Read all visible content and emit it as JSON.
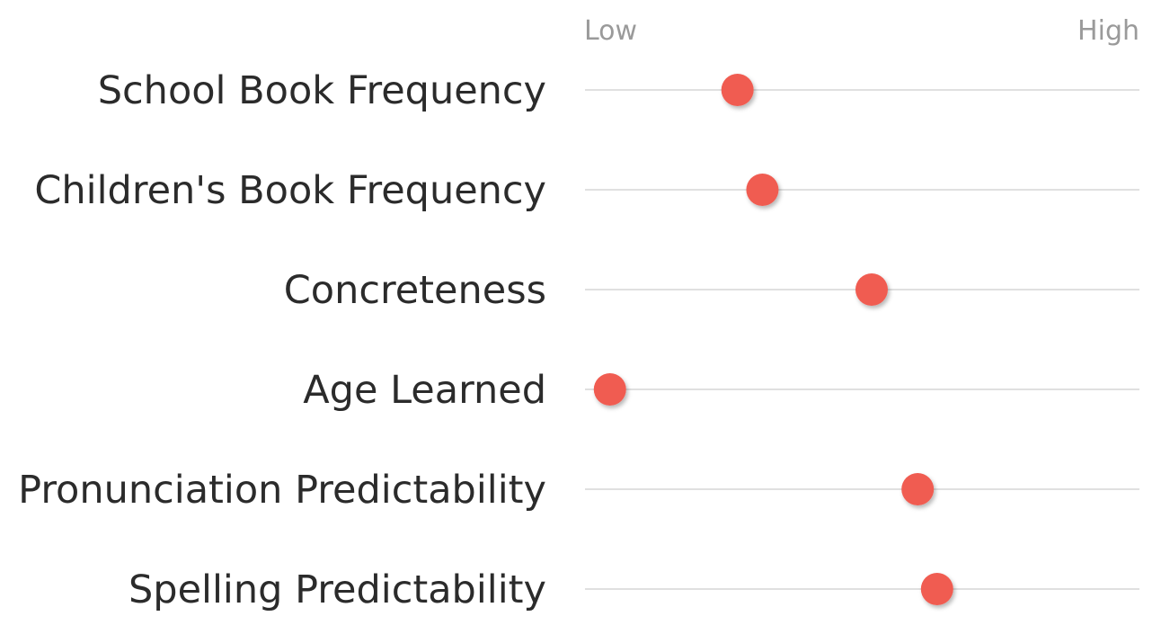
{
  "chart_data": {
    "type": "scatter",
    "title": "",
    "xlabel": "",
    "ylabel": "",
    "scale": {
      "low_label": "Low",
      "high_label": "High"
    },
    "xlim": [
      0,
      1
    ],
    "grid": false,
    "legend": "none",
    "categories": [
      "School Book Frequency",
      "Children's Book Frequency",
      "Concreteness",
      "Age Learned",
      "Pronunciation Predictability",
      "Spelling Predictability"
    ],
    "values": [
      0.275,
      0.32,
      0.517,
      0.045,
      0.6,
      0.635
    ],
    "colors": {
      "dot": "#f05c51",
      "track": "#d6d6d6",
      "label": "#2b2b2b",
      "scale_label": "#9a9a9a"
    }
  }
}
